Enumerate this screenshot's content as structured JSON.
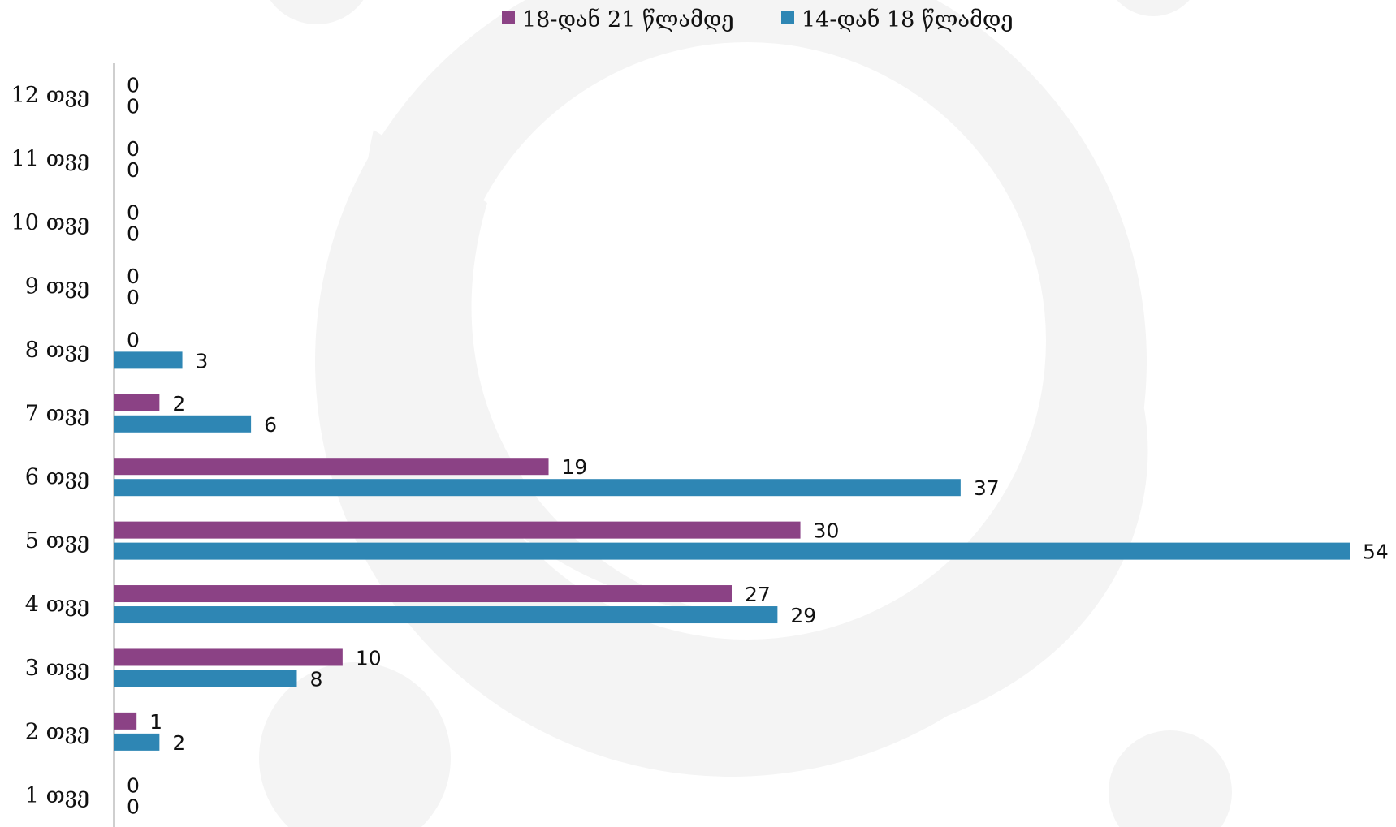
{
  "chart_data": {
    "type": "bar",
    "orientation": "horizontal",
    "categories": [
      "1 თვე",
      "2 თვე",
      "3 თვე",
      "4 თვე",
      "5 თვე",
      "6 თვე",
      "7 თვე",
      "8 თვე",
      "9 თვე",
      "10 თვე",
      "11 თვე",
      "12 თვე"
    ],
    "series": [
      {
        "name": "18-დან 21 წლამდე",
        "color": "#8B4285",
        "values": [
          0,
          1,
          10,
          27,
          30,
          19,
          2,
          0,
          0,
          0,
          0,
          0
        ]
      },
      {
        "name": "14-დან 18 წლამდე",
        "color": "#2E86B4",
        "values": [
          0,
          2,
          8,
          29,
          54,
          37,
          6,
          3,
          0,
          0,
          0,
          0
        ]
      }
    ],
    "xlim": [
      0,
      54
    ],
    "grid": false,
    "data_labels": true,
    "legend_position": "top-center",
    "watermark_color": "#f4f4f4"
  }
}
